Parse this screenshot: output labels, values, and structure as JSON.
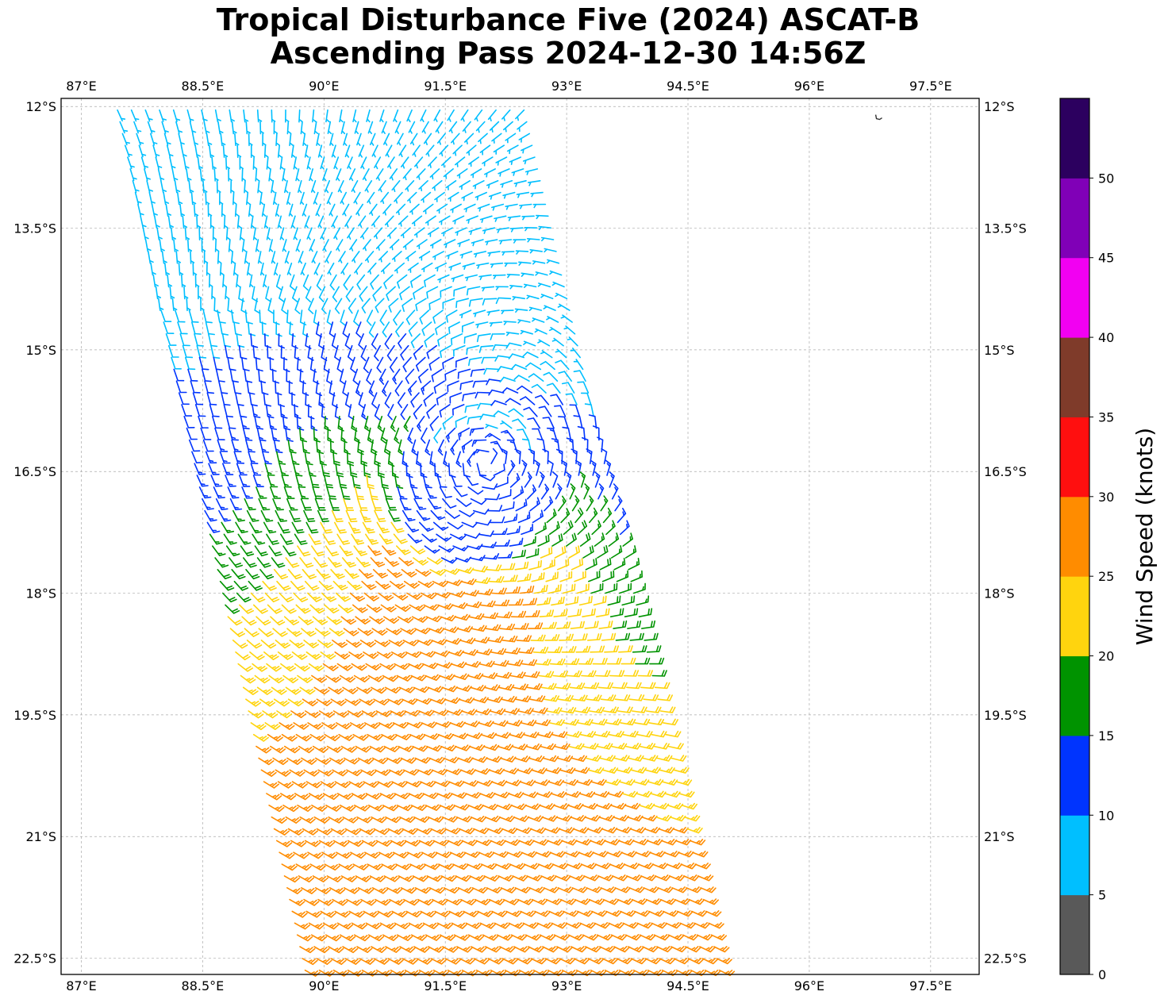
{
  "title": {
    "line1": "Tropical Disturbance Five (2024) ASCAT-B",
    "line2": "Ascending Pass 2024-12-30 14:56Z"
  },
  "map": {
    "extent": {
      "lon": [
        86.75,
        98.1
      ],
      "lat": [
        -22.7,
        -11.9
      ]
    },
    "lon_ticks": [
      {
        "value": 87,
        "label": "87°E"
      },
      {
        "value": 88.5,
        "label": "88.5°E"
      },
      {
        "value": 90,
        "label": "90°E"
      },
      {
        "value": 91.5,
        "label": "91.5°E"
      },
      {
        "value": 93,
        "label": "93°E"
      },
      {
        "value": 94.5,
        "label": "94.5°E"
      },
      {
        "value": 96,
        "label": "96°E"
      },
      {
        "value": 97.5,
        "label": "97.5°E"
      }
    ],
    "lat_ticks": [
      {
        "value": -12,
        "label": "12°S"
      },
      {
        "value": -13.5,
        "label": "13.5°S"
      },
      {
        "value": -15,
        "label": "15°S"
      },
      {
        "value": -16.5,
        "label": "16.5°S"
      },
      {
        "value": -18,
        "label": "18°S"
      },
      {
        "value": -19.5,
        "label": "19.5°S"
      },
      {
        "value": -21,
        "label": "21°S"
      },
      {
        "value": -22.5,
        "label": "22.5°S"
      }
    ],
    "gridlines": true,
    "swath": {
      "corners": [
        [
          87.35,
          -12.0
        ],
        [
          92.55,
          -12.0
        ],
        [
          95.0,
          -22.75
        ],
        [
          89.7,
          -22.75
        ]
      ]
    },
    "circulation_center": {
      "lon": 91.8,
      "lat": -16.8
    },
    "island_marker": {
      "lon": 96.85,
      "lat": -12.15
    }
  },
  "colorbar": {
    "label": "Wind Speed (knots)",
    "bounds": [
      0,
      5,
      10,
      15,
      20,
      25,
      30,
      35,
      40,
      45,
      50,
      55
    ],
    "tick_labels": [
      "0",
      "5",
      "10",
      "15",
      "20",
      "25",
      "30",
      "35",
      "40",
      "45",
      "50"
    ],
    "colors": [
      "#595959",
      "#00bfff",
      "#0034fe",
      "#009300",
      "#ffd40e",
      "#ff8c00",
      "#ff0f0f",
      "#7f3b2a",
      "#f200f2",
      "#8000b7",
      "#2c005f"
    ]
  },
  "chart_data": {
    "type": "wind-barbs",
    "units": "knots",
    "note_title": "Tropical Disturbance Five (2024) ASCAT-B Ascending Pass 2024-12-30 14:56Z",
    "speed_bands_knots": [
      {
        "range": [
          5,
          10
        ],
        "color": "#00bfff"
      },
      {
        "range": [
          10,
          15
        ],
        "color": "#0034fe"
      },
      {
        "range": [
          15,
          20
        ],
        "color": "#009300"
      },
      {
        "range": [
          20,
          25
        ],
        "color": "#ffd40e"
      },
      {
        "range": [
          25,
          30
        ],
        "color": "#ff8c00"
      }
    ],
    "center": {
      "lon": 91.8,
      "lat": -16.8
    },
    "max_observed_knots": 27
  }
}
